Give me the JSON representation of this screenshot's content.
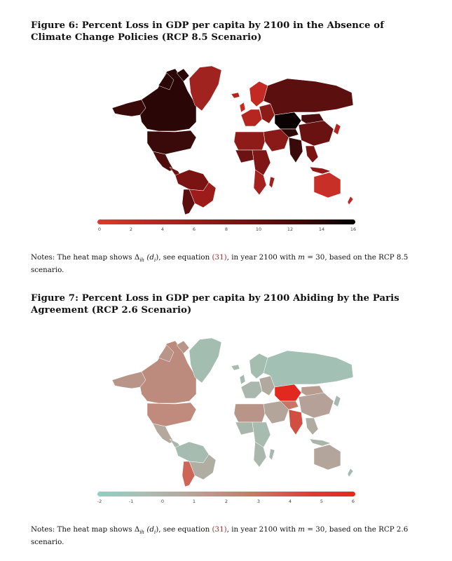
{
  "figure6": {
    "title": "Figure 6: Percent Loss in GDP per capita by 2100 in the Absence of Climate Change Policies (RCP 8.5 Scenario)",
    "colorbar": {
      "ticks": [
        "0",
        "2",
        "4",
        "6",
        "8",
        "10",
        "12",
        "14",
        "16"
      ],
      "colors": [
        "#e03a2f",
        "#c02522",
        "#9a1a17",
        "#6e1010",
        "#3e0808",
        "#000000"
      ]
    },
    "notes_prefix": "Notes: The heat map shows Δ",
    "notes_sub": "ih",
    "notes_var": "(d",
    "notes_var_sub": "i",
    "notes_mid": "), see equation ",
    "notes_ref": "(31)",
    "notes_mid2": ", in year 2100 with ",
    "notes_m": "m",
    "notes_eq": " = 30, based on the RCP 8.5 scenario."
  },
  "figure7": {
    "title": "Figure 7: Percent Loss in GDP per capita by 2100 Abiding by the Paris Agreement (RCP 2.6 Scenario)",
    "colorbar": {
      "ticks": [
        "-2",
        "-1",
        "0",
        "1",
        "2",
        "3",
        "4",
        "5",
        "6"
      ],
      "colors": [
        "#8ed0c2",
        "#a8c0b4",
        "#b5a99e",
        "#bf8d80",
        "#cc6a5a",
        "#de3d30",
        "#e5281f"
      ]
    },
    "notes_prefix": "Notes: The heat map shows Δ",
    "notes_sub": "ih",
    "notes_var": "(d",
    "notes_var_sub": "i",
    "notes_mid": "), see equation ",
    "notes_ref": "(31)",
    "notes_mid2": ", in year 2100 with ",
    "notes_m": "m",
    "notes_eq": " = 30, based on the RCP 2.6 scenario."
  }
}
